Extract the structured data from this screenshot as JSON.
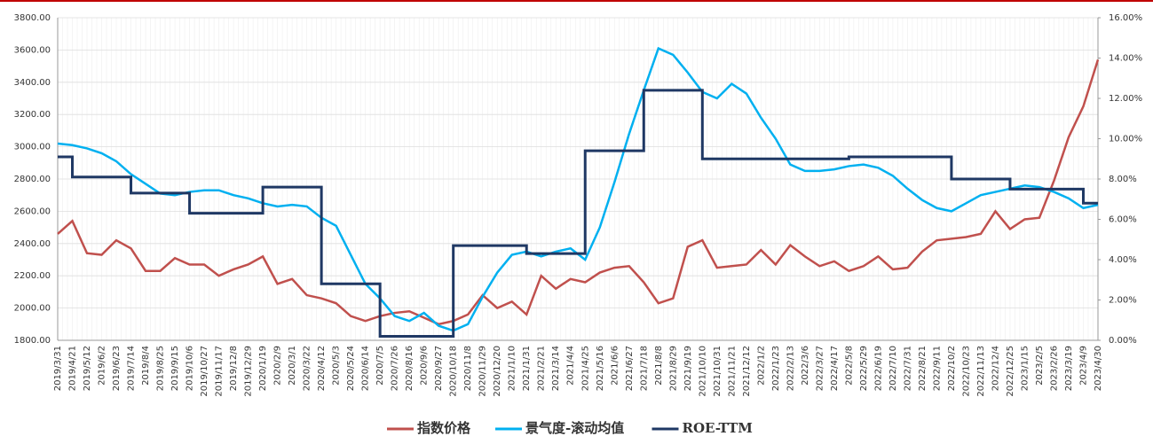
{
  "chart_data": {
    "type": "line",
    "categories": [
      "2019/3/31",
      "2019/4/21",
      "2019/5/12",
      "2019/6/2",
      "2019/6/23",
      "2019/7/14",
      "2019/8/4",
      "2019/8/25",
      "2019/9/15",
      "2019/10/6",
      "2019/10/27",
      "2019/11/17",
      "2019/12/8",
      "2019/12/29",
      "2020/1/19",
      "2020/2/9",
      "2020/3/1",
      "2020/3/22",
      "2020/4/12",
      "2020/5/3",
      "2020/5/24",
      "2020/6/14",
      "2020/7/5",
      "2020/7/26",
      "2020/8/16",
      "2020/9/6",
      "2020/9/27",
      "2020/10/18",
      "2020/11/8",
      "2020/11/29",
      "2020/12/20",
      "2021/1/10",
      "2021/1/31",
      "2021/2/21",
      "2021/3/14",
      "2021/4/4",
      "2021/4/25",
      "2021/5/16",
      "2021/6/6",
      "2021/6/27",
      "2021/7/18",
      "2021/8/8",
      "2021/8/29",
      "2021/9/19",
      "2021/10/10",
      "2021/10/31",
      "2021/11/21",
      "2021/12/12",
      "2022/1/2",
      "2022/1/23",
      "2022/2/13",
      "2022/3/6",
      "2022/3/27",
      "2022/4/17",
      "2022/5/8",
      "2022/5/29",
      "2022/6/19",
      "2022/7/10",
      "2022/7/31",
      "2022/8/21",
      "2022/9/11",
      "2022/10/2",
      "2022/10/23",
      "2022/11/13",
      "2022/12/4",
      "2022/12/25",
      "2023/1/15",
      "2023/2/5",
      "2023/2/26",
      "2023/3/19",
      "2023/4/9",
      "2023/4/30"
    ],
    "series": [
      {
        "name": "指数价格",
        "color": "#c0504d",
        "values": [
          2460,
          2540,
          2340,
          2330,
          2420,
          2370,
          2230,
          2230,
          2310,
          2270,
          2270,
          2200,
          2240,
          2270,
          2320,
          2150,
          2180,
          2080,
          2060,
          2030,
          1950,
          1920,
          1950,
          1970,
          1980,
          1940,
          1900,
          1920,
          1960,
          2080,
          2000,
          2040,
          1960,
          2200,
          2120,
          2180,
          2160,
          2220,
          2250,
          2260,
          2160,
          2030,
          2060,
          2380,
          2420,
          2250,
          2260,
          2270,
          2360,
          2270,
          2390,
          2320,
          2260,
          2290,
          2230,
          2260,
          2320,
          2240,
          2250,
          2350,
          2420,
          2430,
          2440,
          2460,
          2600,
          2490,
          2550,
          2560,
          2790,
          3060,
          3250,
          3540
        ]
      },
      {
        "name": "景气度-滚动均值",
        "color": "#00b0f0",
        "values": [
          3020,
          3010,
          2990,
          2960,
          2910,
          2830,
          2770,
          2710,
          2700,
          2720,
          2730,
          2730,
          2700,
          2680,
          2650,
          2630,
          2640,
          2630,
          2560,
          2510,
          2330,
          2150,
          2060,
          1950,
          1920,
          1970,
          1890,
          1860,
          1900,
          2070,
          2220,
          2330,
          2350,
          2320,
          2350,
          2370,
          2300,
          2500,
          2780,
          3080,
          3350,
          3610,
          3570,
          3460,
          3340,
          3300,
          3390,
          3330,
          3180,
          3050,
          2890,
          2850,
          2850,
          2860,
          2880,
          2890,
          2870,
          2820,
          2740,
          2670,
          2620,
          2600,
          2650,
          2700,
          2720,
          2740,
          2760,
          2750,
          2720,
          2680,
          2620,
          2640
        ]
      },
      {
        "name": "ROE-TTM",
        "color": "#1f3864",
        "axis": "y2",
        "step": true,
        "values": [
          9.1,
          8.1,
          8.1,
          8.1,
          8.1,
          7.3,
          7.3,
          7.3,
          7.3,
          6.3,
          6.3,
          6.3,
          6.3,
          6.3,
          7.6,
          7.6,
          7.6,
          7.6,
          2.8,
          2.8,
          2.8,
          2.8,
          0.2,
          0.2,
          0.2,
          0.2,
          0.2,
          4.7,
          4.7,
          4.7,
          4.7,
          4.7,
          4.3,
          4.3,
          4.3,
          4.3,
          9.4,
          9.4,
          9.4,
          9.4,
          12.4,
          12.4,
          12.4,
          12.4,
          9.0,
          9.0,
          9.0,
          9.0,
          9.0,
          9.0,
          9.0,
          9.0,
          9.0,
          9.0,
          9.1,
          9.1,
          9.1,
          9.1,
          9.1,
          9.1,
          9.1,
          8.0,
          8.0,
          8.0,
          8.0,
          7.5,
          7.5,
          7.5,
          7.5,
          7.5,
          6.8,
          6.8
        ]
      }
    ],
    "ylim": [
      1800,
      3800
    ],
    "yticks": [
      {
        "value": 1800,
        "label": "1800.00"
      },
      {
        "value": 2000,
        "label": "2000.00"
      },
      {
        "value": 2200,
        "label": "2200.00"
      },
      {
        "value": 2400,
        "label": "2400.00"
      },
      {
        "value": 2600,
        "label": "2600.00"
      },
      {
        "value": 2800,
        "label": "2800.00"
      },
      {
        "value": 3000,
        "label": "3000.00"
      },
      {
        "value": 3200,
        "label": "3200.00"
      },
      {
        "value": 3400,
        "label": "3400.00"
      },
      {
        "value": 3600,
        "label": "3600.00"
      },
      {
        "value": 3800,
        "label": "3800.00"
      }
    ],
    "y2lim": [
      0,
      16
    ],
    "y2ticks": [
      {
        "value": 0,
        "label": "0.00%"
      },
      {
        "value": 2,
        "label": "2.00%"
      },
      {
        "value": 4,
        "label": "4.00%"
      },
      {
        "value": 6,
        "label": "6.00%"
      },
      {
        "value": 8,
        "label": "8.00%"
      },
      {
        "value": 10,
        "label": "10.00%"
      },
      {
        "value": 12,
        "label": "12.00%"
      },
      {
        "value": 14,
        "label": "14.00%"
      },
      {
        "value": 16,
        "label": "16.00%"
      }
    ],
    "grid": true,
    "legend": "bottom"
  }
}
